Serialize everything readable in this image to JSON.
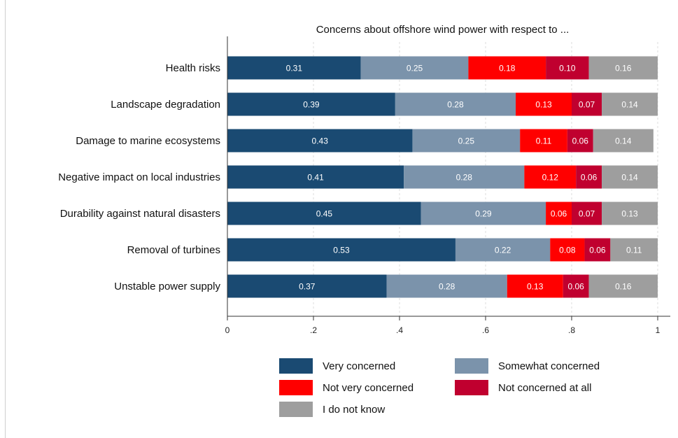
{
  "chart_data": {
    "type": "bar",
    "orientation": "horizontal",
    "stacked": true,
    "title": "Concerns about offshore wind power with respect to ...",
    "categories": [
      "Health risks",
      "Landscape degradation",
      "Damage to marine ecosystems",
      "Negative impact on local industries",
      "Durability against natural disasters",
      "Removal of turbines",
      "Unstable power supply"
    ],
    "series": [
      {
        "name": "Very concerned",
        "color": "#1a4a72",
        "values": [
          0.31,
          0.39,
          0.43,
          0.41,
          0.45,
          0.53,
          0.37
        ]
      },
      {
        "name": "Somewhat concerned",
        "color": "#7b93ab",
        "values": [
          0.25,
          0.28,
          0.25,
          0.28,
          0.29,
          0.22,
          0.28
        ]
      },
      {
        "name": "Not very concerned",
        "color": "#ff0000",
        "values": [
          0.18,
          0.13,
          0.11,
          0.12,
          0.06,
          0.08,
          0.13
        ]
      },
      {
        "name": "Not concerned at all",
        "color": "#c0002f",
        "values": [
          0.1,
          0.07,
          0.06,
          0.06,
          0.07,
          0.06,
          0.06
        ]
      },
      {
        "name": "I do not know",
        "color": "#9e9e9e",
        "values": [
          0.16,
          0.14,
          0.14,
          0.14,
          0.13,
          0.11,
          0.16
        ]
      }
    ],
    "data_labels": [
      [
        "0.31",
        "0.25",
        "0.18",
        "0.10",
        "0.16"
      ],
      [
        "0.39",
        "0.28",
        "0.13",
        "0.07",
        "0.14"
      ],
      [
        "0.43",
        "0.25",
        "0.11",
        "0.06",
        "0.14"
      ],
      [
        "0.41",
        "0.28",
        "0.12",
        "0.06",
        "0.14"
      ],
      [
        "0.45",
        "0.29",
        "0.06",
        "0.07",
        "0.13"
      ],
      [
        "0.53",
        "0.22",
        "0.08",
        "0.06",
        "0.11"
      ],
      [
        "0.37",
        "0.28",
        "0.13",
        "0.06",
        "0.16"
      ]
    ],
    "x_ticks": [
      {
        "value": 0,
        "label": "0"
      },
      {
        "value": 0.2,
        "label": ".2"
      },
      {
        "value": 0.4,
        "label": ".4"
      },
      {
        "value": 0.6,
        "label": ".6"
      },
      {
        "value": 0.8,
        "label": ".8"
      },
      {
        "value": 1,
        "label": "1"
      }
    ],
    "xlim": [
      0,
      1
    ],
    "grid": "vertical dashed",
    "legend_position": "bottom"
  }
}
